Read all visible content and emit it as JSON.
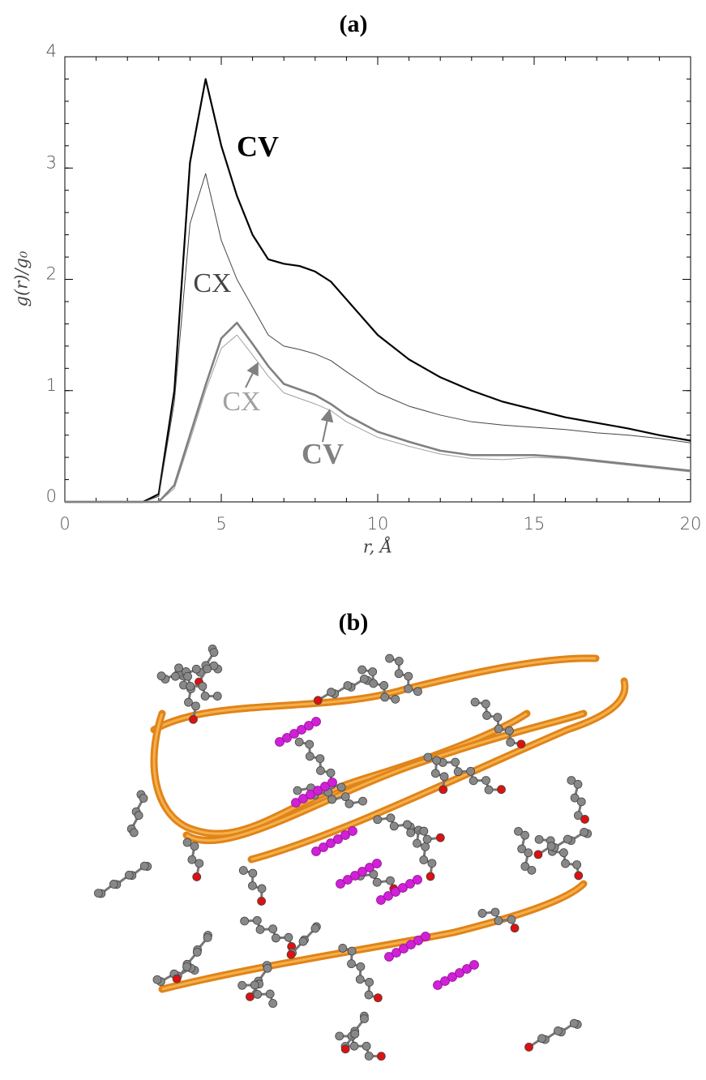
{
  "chart_data": {
    "type": "line",
    "title": "(a)",
    "x_label": "r, Å",
    "y_label": "g(r)/g₀",
    "x": [
      0,
      1,
      2,
      2.5,
      3,
      3.5,
      4,
      4.5,
      5,
      5.5,
      6,
      6.5,
      7,
      7.5,
      8,
      8.5,
      9,
      10,
      11,
      12,
      13,
      14,
      15,
      16,
      17,
      18,
      19,
      20
    ],
    "series": [
      {
        "name": "CV",
        "color": "#000000",
        "values": [
          0,
          0,
          0,
          0,
          0.07,
          1.0,
          3.05,
          3.8,
          3.2,
          2.75,
          2.4,
          2.18,
          2.14,
          2.12,
          2.07,
          1.98,
          1.82,
          1.5,
          1.28,
          1.12,
          1.0,
          0.9,
          0.83,
          0.76,
          0.71,
          0.66,
          0.6,
          0.55
        ]
      },
      {
        "name": "CX",
        "color": "#444444",
        "values": [
          0,
          0,
          0,
          0,
          0.05,
          0.9,
          2.5,
          2.95,
          2.35,
          2.0,
          1.75,
          1.5,
          1.4,
          1.37,
          1.33,
          1.27,
          1.17,
          0.98,
          0.86,
          0.78,
          0.72,
          0.69,
          0.67,
          0.65,
          0.62,
          0.6,
          0.57,
          0.53
        ]
      },
      {
        "name": "CX",
        "color": "#a0a0a0",
        "values": [
          0,
          0,
          0,
          0,
          0,
          0.12,
          0.55,
          1.0,
          1.38,
          1.5,
          1.32,
          1.13,
          0.98,
          0.93,
          0.88,
          0.82,
          0.72,
          0.58,
          0.5,
          0.43,
          0.39,
          0.38,
          0.4,
          0.39,
          0.36,
          0.33,
          0.3,
          0.27
        ]
      },
      {
        "name": "CV",
        "color": "#808080",
        "values": [
          0,
          0,
          0,
          0,
          0,
          0.15,
          0.6,
          1.05,
          1.47,
          1.61,
          1.42,
          1.22,
          1.06,
          1.01,
          0.96,
          0.88,
          0.78,
          0.63,
          0.54,
          0.46,
          0.42,
          0.42,
          0.42,
          0.4,
          0.37,
          0.34,
          0.31,
          0.28
        ]
      }
    ],
    "xlim": [
      0,
      20
    ],
    "xticks": [
      0,
      5,
      10,
      15,
      20
    ],
    "ylim": [
      0,
      4
    ],
    "yticks": [
      0,
      1,
      2,
      3,
      4
    ]
  },
  "panel_b": {
    "title": "(b)"
  }
}
